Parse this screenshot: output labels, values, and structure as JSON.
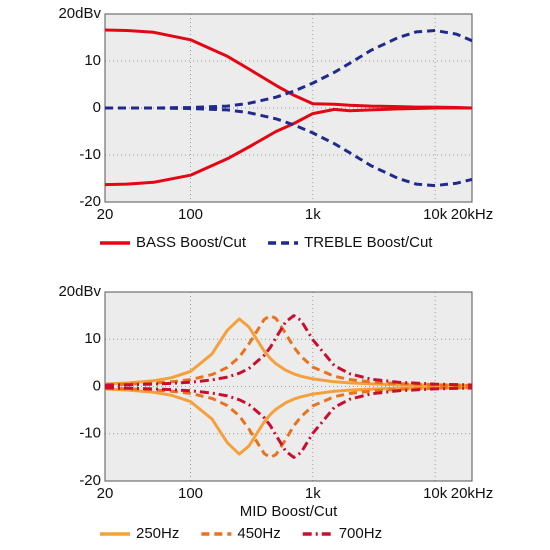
{
  "chart_data": [
    {
      "type": "line",
      "xscale": "log",
      "x": [
        20,
        30,
        50,
        100,
        200,
        300,
        500,
        700,
        1000,
        1500,
        2000,
        3000,
        5000,
        7000,
        10000,
        15000,
        20000
      ],
      "xlim": [
        20,
        20000
      ],
      "xticks": [
        20,
        100,
        {
          "value": 1000,
          "label": "1k"
        },
        {
          "value": 10000,
          "label": "10k"
        },
        {
          "value": 20000,
          "label": "20kHz"
        }
      ],
      "ylim": [
        -20,
        20
      ],
      "yticks": [
        {
          "value": 20,
          "label": "20dBv"
        },
        10,
        0,
        -10,
        -20
      ],
      "grid": true,
      "series": [
        {
          "name": "BASS Boost/Cut",
          "color": "#e30613",
          "style": "solid",
          "curves": [
            {
              "values": [
                16.6,
                16.5,
                16.1,
                14.5,
                11,
                8.3,
                4.8,
                2.7,
                0.9,
                0.8,
                0.6,
                0.4,
                0.3,
                0.2,
                0.2,
                0.1,
                0
              ]
            },
            {
              "values": [
                -16.3,
                -16.2,
                -15.8,
                -14.3,
                -10.8,
                -8.3,
                -5,
                -3.3,
                -1.2,
                -0.3,
                -0.6,
                -0.4,
                -0.2,
                -0.1,
                0,
                0,
                0
              ]
            }
          ]
        },
        {
          "name": "TREBLE Boost/Cut",
          "color": "#1f2a8c",
          "style": "dashed",
          "curves": [
            {
              "values": [
                0,
                0,
                0,
                0.1,
                0.4,
                1,
                2.3,
                3.6,
                5.3,
                7.6,
                9.5,
                12.3,
                15,
                16.2,
                16.5,
                15.7,
                14.3
              ]
            },
            {
              "values": [
                0,
                0,
                0,
                -0.1,
                -0.4,
                -1,
                -2.3,
                -3.6,
                -5.3,
                -7.6,
                -9.5,
                -12.3,
                -15,
                -16.2,
                -16.5,
                -16,
                -15.2
              ]
            }
          ]
        }
      ]
    },
    {
      "type": "line",
      "xscale": "log",
      "x_label": "MID Boost/Cut",
      "x": [
        20,
        30,
        50,
        70,
        100,
        150,
        200,
        250,
        300,
        400,
        450,
        500,
        600,
        700,
        800,
        1000,
        1500,
        2000,
        3000,
        5000,
        10000,
        20000
      ],
      "xlim": [
        20,
        20000
      ],
      "xticks": [
        20,
        100,
        {
          "value": 1000,
          "label": "1k"
        },
        {
          "value": 10000,
          "label": "10k"
        },
        {
          "value": 20000,
          "label": "20kHz"
        }
      ],
      "ylim": [
        -20,
        20
      ],
      "yticks": [
        {
          "value": 20,
          "label": "20dBv"
        },
        10,
        0,
        -10,
        -20
      ],
      "grid": true,
      "series": [
        {
          "name": "250Hz",
          "color": "#f5a03a",
          "style": "solid",
          "curves": [
            {
              "values": [
                0.53,
                0.74,
                1.23,
                1.87,
                3.2,
                6.9,
                11.9,
                14.3,
                12.6,
                7.5,
                5.9,
                4.8,
                3.45,
                2.67,
                2.18,
                1.61,
                1,
                0.76,
                0.54,
                0.38,
                0.25,
                0.18
              ]
            },
            {
              "values": [
                -0.53,
                -0.74,
                -1.23,
                -1.87,
                -3.2,
                -6.9,
                -11.9,
                -14.3,
                -12.6,
                -7.5,
                -5.9,
                -4.8,
                -3.45,
                -2.67,
                -2.18,
                -1.61,
                -1,
                -0.76,
                -0.54,
                -0.38,
                -0.25,
                -0.18
              ]
            }
          ]
        },
        {
          "name": "450Hz",
          "color": "#e8731e",
          "style": "dashed",
          "curves": [
            {
              "values": [
                0.37,
                0.48,
                0.72,
                0.99,
                1.45,
                2.52,
                4.05,
                6.2,
                9,
                14.2,
                15,
                14.4,
                11.2,
                8.3,
                6.4,
                4.1,
                2.16,
                1.48,
                0.95,
                0.6,
                0.37,
                0.25
              ]
            },
            {
              "values": [
                -0.37,
                -0.48,
                -0.72,
                -0.99,
                -1.45,
                -2.52,
                -4.05,
                -6.2,
                -9,
                -14.2,
                -15,
                -14.4,
                -11.2,
                -8.3,
                -6.4,
                -4.1,
                -2.16,
                -1.48,
                -0.95,
                -0.6,
                -0.37,
                -0.25
              ]
            }
          ]
        },
        {
          "name": "700Hz",
          "color": "#c8102e",
          "style": "dashdot",
          "curves": [
            {
              "values": [
                0.28,
                0.36,
                0.51,
                0.66,
                0.91,
                1.4,
                2,
                2.8,
                3.8,
                6.6,
                8.3,
                10.3,
                13.7,
                15,
                14,
                9.9,
                4.4,
                2.7,
                1.55,
                0.89,
                0.5,
                0.32
              ]
            },
            {
              "values": [
                -0.28,
                -0.36,
                -0.51,
                -0.66,
                -0.91,
                -1.4,
                -2,
                -2.8,
                -3.8,
                -6.6,
                -8.3,
                -10.3,
                -13.7,
                -15,
                -14,
                -9.9,
                -4.4,
                -2.7,
                -1.55,
                -0.89,
                -0.5,
                -0.32
              ]
            }
          ]
        }
      ]
    }
  ]
}
